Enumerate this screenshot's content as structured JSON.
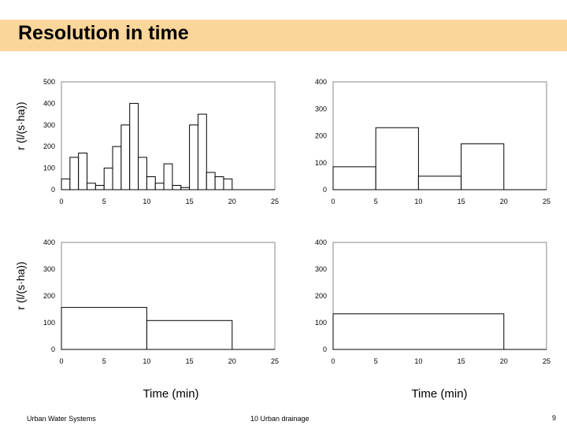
{
  "slide": {
    "title": "Resolution in time",
    "ylabel": "r  (l/(s·ha))",
    "xlabel": "Time (min)",
    "footer_left": "Urban Water Systems",
    "footer_center": "10  Urban drainage",
    "page_number": "9"
  },
  "chart_data": [
    {
      "type": "bar",
      "interval_min": 1,
      "x_start": [
        0,
        1,
        2,
        3,
        4,
        5,
        6,
        7,
        8,
        9,
        10,
        11,
        12,
        13,
        14,
        15,
        16,
        17,
        18,
        19
      ],
      "values": [
        50,
        150,
        170,
        30,
        20,
        100,
        200,
        300,
        400,
        150,
        60,
        30,
        120,
        20,
        10,
        300,
        350,
        80,
        60,
        50
      ],
      "xlim": [
        0,
        25
      ],
      "ylim": [
        0,
        500
      ],
      "xticks": [
        0,
        5,
        10,
        15,
        20,
        25
      ],
      "yticks": [
        0,
        100,
        200,
        300,
        400,
        500
      ]
    },
    {
      "type": "bar",
      "interval_min": 5,
      "x_start": [
        0,
        5,
        10,
        15
      ],
      "values": [
        85,
        230,
        50,
        170
      ],
      "xlim": [
        0,
        25
      ],
      "ylim": [
        0,
        400
      ],
      "xticks": [
        0,
        5,
        10,
        15,
        20,
        25
      ],
      "yticks": [
        0,
        100,
        200,
        300,
        400
      ]
    },
    {
      "type": "bar",
      "interval_min": 10,
      "x_start": [
        0,
        10
      ],
      "values": [
        157,
        108
      ],
      "xlim": [
        0,
        25
      ],
      "ylim": [
        0,
        400
      ],
      "xticks": [
        0,
        5,
        10,
        15,
        20,
        25
      ],
      "yticks": [
        0,
        100,
        200,
        300,
        400
      ]
    },
    {
      "type": "bar",
      "interval_min": 20,
      "x_start": [
        0
      ],
      "values": [
        133
      ],
      "xlim": [
        0,
        25
      ],
      "ylim": [
        0,
        400
      ],
      "xticks": [
        0,
        5,
        10,
        15,
        20,
        25
      ],
      "yticks": [
        0,
        100,
        200,
        300,
        400
      ]
    }
  ]
}
